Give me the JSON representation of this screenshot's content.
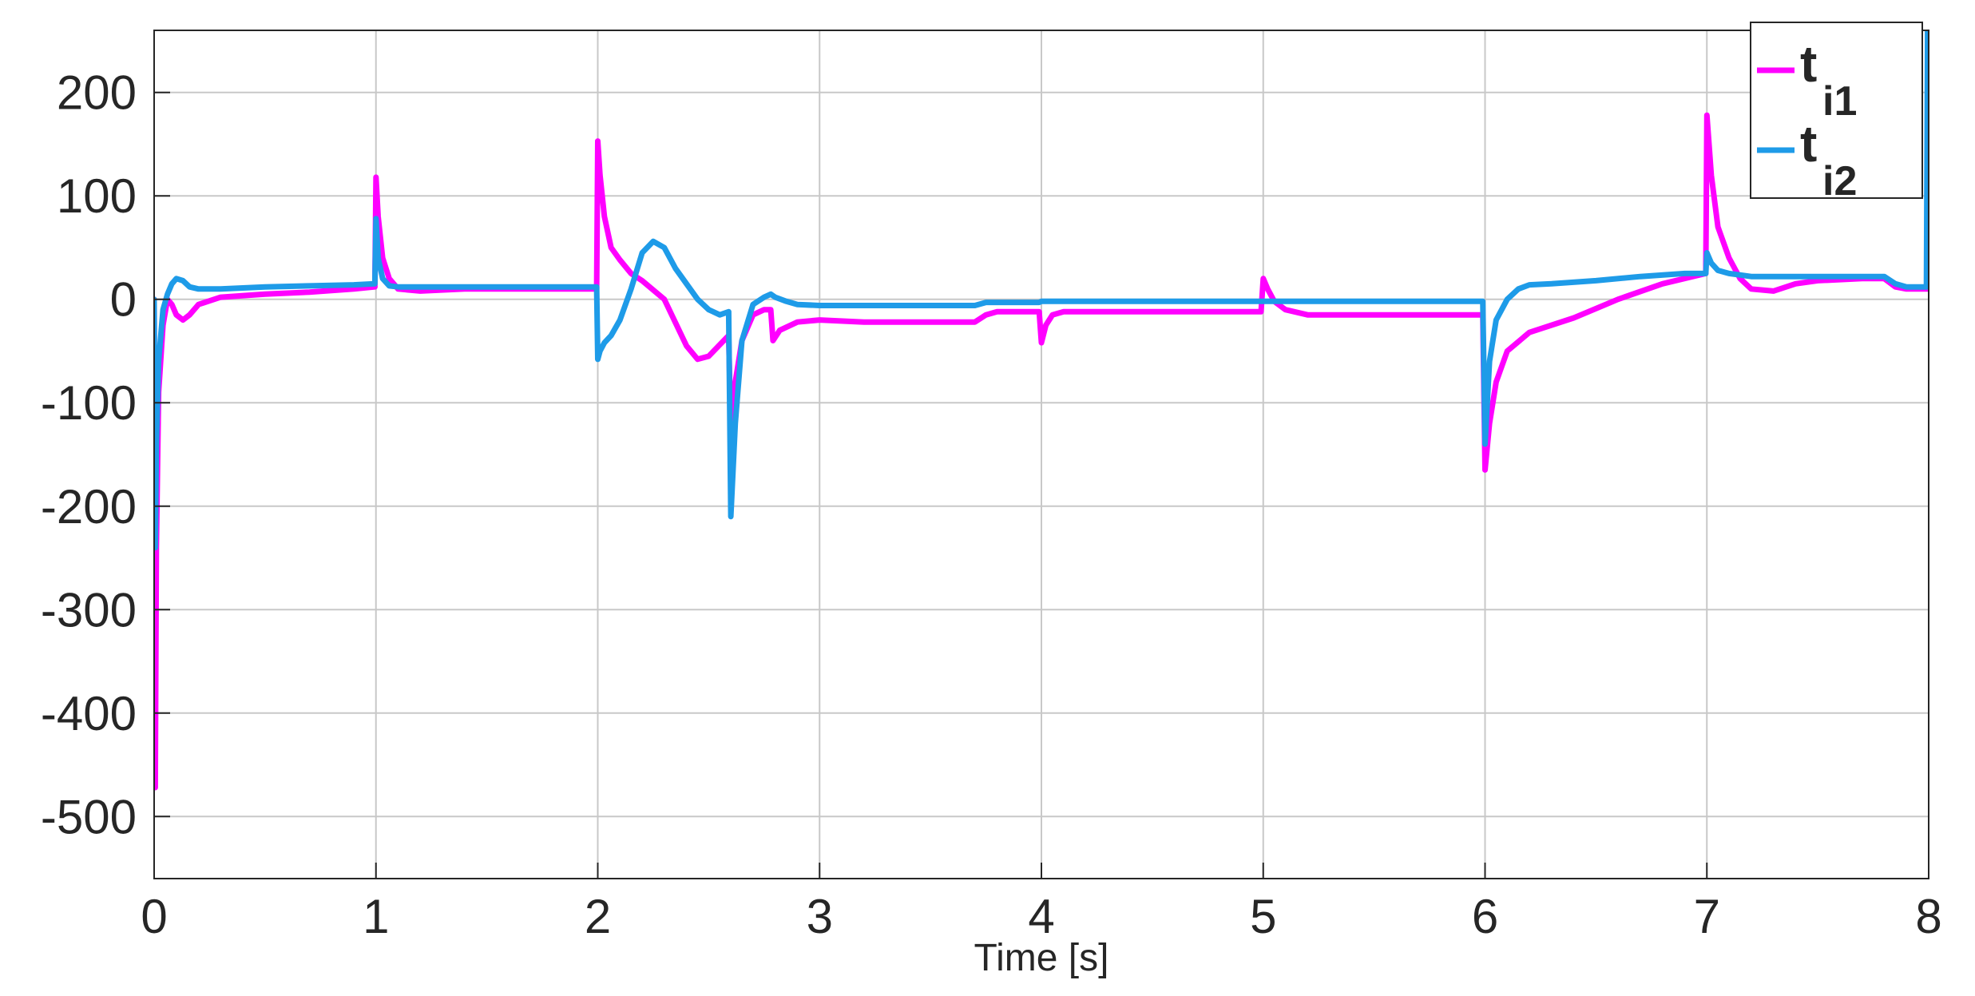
{
  "chart_data": {
    "type": "line",
    "title": "",
    "xlabel": "Time [s]",
    "ylabel": "",
    "xlim": [
      0,
      8
    ],
    "ylim": [
      -560,
      260
    ],
    "xticks": [
      0,
      1,
      2,
      3,
      4,
      5,
      6,
      7,
      8
    ],
    "yticks": [
      -500,
      -400,
      -300,
      -200,
      -100,
      0,
      100,
      200
    ],
    "xtick_labels": [
      "0",
      "1",
      "2",
      "3",
      "4",
      "5",
      "6",
      "7",
      "8"
    ],
    "ytick_labels": [
      "-500",
      "-400",
      "-300",
      "-200",
      "-100",
      "0",
      "100",
      "200"
    ],
    "grid": true,
    "legend": {
      "placement": "top-right",
      "entries": [
        {
          "main": "t",
          "sub": "i1"
        },
        {
          "main": "t",
          "sub": "i2"
        }
      ]
    },
    "series": [
      {
        "color": "#ff00ff",
        "x": [
          0,
          0.005,
          0.01,
          0.02,
          0.04,
          0.06,
          0.08,
          0.1,
          0.13,
          0.16,
          0.2,
          0.3,
          0.5,
          0.7,
          0.9,
          0.995,
          1.0,
          1.01,
          1.03,
          1.06,
          1.1,
          1.2,
          1.4,
          1.6,
          1.8,
          1.995,
          2.0,
          2.01,
          2.03,
          2.06,
          2.1,
          2.15,
          2.2,
          2.3,
          2.4,
          2.45,
          2.5,
          2.59,
          2.6,
          2.62,
          2.65,
          2.7,
          2.75,
          2.78,
          2.79,
          2.82,
          2.9,
          3.0,
          3.2,
          3.5,
          3.7,
          3.75,
          3.8,
          3.99,
          4.0,
          4.02,
          4.05,
          4.1,
          4.2,
          4.5,
          4.99,
          5.0,
          5.02,
          5.05,
          5.1,
          5.2,
          5.5,
          5.99,
          6.0,
          6.02,
          6.05,
          6.1,
          6.2,
          6.4,
          6.6,
          6.8,
          6.995,
          7.0,
          7.02,
          7.05,
          7.1,
          7.15,
          7.2,
          7.3,
          7.4,
          7.5,
          7.7,
          7.8,
          7.85,
          7.9,
          8.0
        ],
        "y": [
          0,
          -472,
          -240,
          -90,
          -25,
          0,
          -5,
          -15,
          -20,
          -15,
          -5,
          2,
          5,
          7,
          10,
          12,
          118,
          80,
          40,
          20,
          10,
          8,
          10,
          10,
          10,
          10,
          153,
          120,
          80,
          50,
          38,
          25,
          18,
          0,
          -45,
          -58,
          -55,
          -35,
          -125,
          -80,
          -40,
          -15,
          -10,
          -10,
          -40,
          -30,
          -22,
          -20,
          -22,
          -22,
          -22,
          -15,
          -12,
          -12,
          -42,
          -25,
          -15,
          -12,
          -12,
          -12,
          -12,
          20,
          10,
          -2,
          -10,
          -15,
          -15,
          -15,
          -165,
          -120,
          -80,
          -50,
          -32,
          -18,
          0,
          15,
          25,
          178,
          120,
          70,
          40,
          20,
          10,
          8,
          15,
          18,
          20,
          20,
          12,
          10,
          10
        ]
      },
      {
        "color": "#1e9be8",
        "x": [
          0,
          0.005,
          0.01,
          0.02,
          0.04,
          0.06,
          0.08,
          0.1,
          0.13,
          0.16,
          0.2,
          0.3,
          0.5,
          0.7,
          0.9,
          0.995,
          1.0,
          1.01,
          1.03,
          1.06,
          1.1,
          1.2,
          1.4,
          1.6,
          1.8,
          1.995,
          2.0,
          2.01,
          2.03,
          2.06,
          2.1,
          2.15,
          2.2,
          2.25,
          2.3,
          2.35,
          2.4,
          2.45,
          2.5,
          2.55,
          2.59,
          2.6,
          2.62,
          2.65,
          2.7,
          2.75,
          2.78,
          2.8,
          2.85,
          2.9,
          3.0,
          3.2,
          3.5,
          3.7,
          3.75,
          3.99,
          4.0,
          4.02,
          4.05,
          4.1,
          4.5,
          5.0,
          5.5,
          5.99,
          6.0,
          6.02,
          6.05,
          6.1,
          6.15,
          6.2,
          6.3,
          6.5,
          6.7,
          6.9,
          6.995,
          7.0,
          7.02,
          7.05,
          7.1,
          7.2,
          7.4,
          7.6,
          7.8,
          7.85,
          7.9,
          7.99,
          7.995,
          8.0
        ],
        "y": [
          0,
          -240,
          -140,
          -60,
          -10,
          5,
          15,
          20,
          18,
          12,
          10,
          10,
          12,
          13,
          14,
          15,
          78,
          40,
          20,
          13,
          12,
          12,
          12,
          12,
          12,
          12,
          -58,
          -50,
          -42,
          -35,
          -20,
          10,
          45,
          56,
          50,
          30,
          15,
          0,
          -10,
          -15,
          -12,
          -210,
          -120,
          -40,
          -5,
          2,
          5,
          2,
          -2,
          -5,
          -6,
          -6,
          -6,
          -6,
          -3,
          -3,
          -2,
          -2,
          -2,
          -2,
          -2,
          -2,
          -2,
          -2,
          -140,
          -60,
          -20,
          0,
          10,
          14,
          15,
          18,
          22,
          25,
          25,
          45,
          35,
          28,
          25,
          22,
          22,
          22,
          22,
          15,
          12,
          12,
          260,
          260
        ]
      }
    ]
  }
}
